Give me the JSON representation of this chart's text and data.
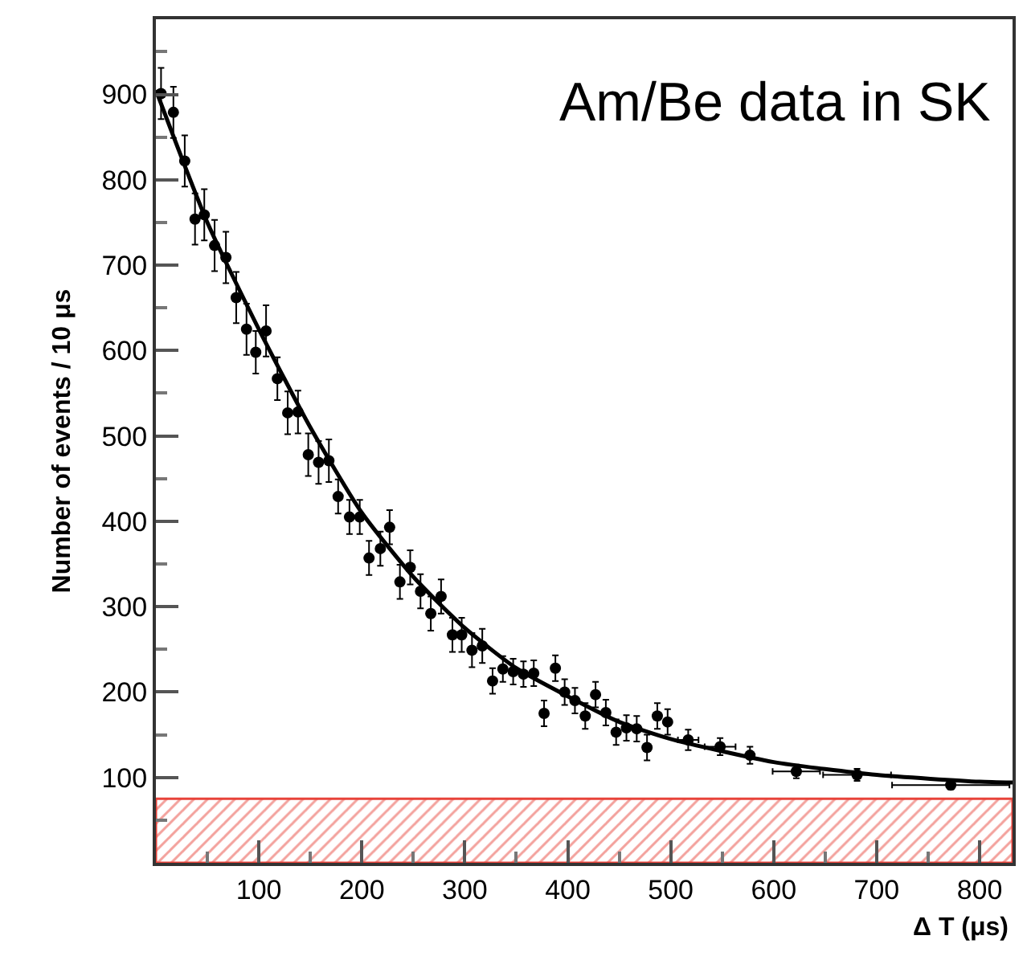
{
  "chart_data": {
    "type": "scatter",
    "xlabel": "Δ T (μs)",
    "ylabel": "Number of events / 10 μs",
    "annotations": [
      "Am/Be data in SK"
    ],
    "xlim": [
      0,
      832
    ],
    "ylim": [
      0,
      988
    ],
    "xticks": [
      100,
      200,
      300,
      400,
      500,
      600,
      700,
      800
    ],
    "yticks": [
      100,
      200,
      300,
      400,
      500,
      600,
      700,
      800,
      900
    ],
    "bands": [
      {
        "axis": "y",
        "from": 0,
        "to": 75,
        "color": "#e8433a"
      }
    ],
    "series": [
      {
        "color": "#000000",
        "marker": "circle",
        "x": [
          5,
          17,
          28,
          38,
          47,
          57,
          68,
          78,
          88,
          97,
          107,
          118,
          128,
          138,
          148,
          158,
          168,
          177,
          188,
          198,
          207,
          218,
          227,
          237,
          247,
          257,
          267,
          277,
          288,
          297,
          307,
          317,
          327,
          337,
          347,
          357,
          367,
          377,
          388,
          397,
          407,
          417,
          427,
          437,
          447,
          457,
          467,
          477,
          487,
          497,
          517,
          548,
          577,
          622,
          681,
          772
        ],
        "values": [
          901,
          879,
          822,
          754,
          759,
          723,
          709,
          662,
          625,
          598,
          623,
          567,
          527,
          528,
          478,
          469,
          471,
          429,
          405,
          405,
          357,
          368,
          393,
          329,
          346,
          318,
          292,
          312,
          267,
          267,
          249,
          254,
          213,
          227,
          224,
          221,
          222,
          175,
          228,
          200,
          190,
          172,
          197,
          176,
          153,
          158,
          157,
          135,
          172,
          165,
          144,
          136,
          126,
          107,
          103,
          91
        ],
        "errors": [
          30,
          30,
          30,
          30,
          30,
          30,
          30,
          30,
          30,
          25,
          30,
          25,
          25,
          25,
          25,
          25,
          25,
          20,
          20,
          20,
          20,
          20,
          20,
          20,
          20,
          20,
          20,
          20,
          20,
          20,
          20,
          20,
          15,
          15,
          15,
          15,
          15,
          15,
          15,
          15,
          15,
          15,
          15,
          15,
          15,
          15,
          15,
          15,
          15,
          15,
          12,
          10,
          10,
          8,
          7,
          5
        ],
        "xerrors": [
          null,
          null,
          null,
          null,
          null,
          null,
          null,
          null,
          null,
          null,
          null,
          null,
          null,
          null,
          null,
          null,
          null,
          null,
          null,
          null,
          null,
          null,
          null,
          null,
          null,
          null,
          null,
          null,
          null,
          null,
          null,
          null,
          null,
          null,
          null,
          null,
          null,
          null,
          null,
          null,
          null,
          null,
          null,
          null,
          null,
          null,
          null,
          null,
          null,
          null,
          10,
          15,
          null,
          23,
          33,
          57
        ]
      },
      {
        "type": "line",
        "color": "#000000",
        "line_style": "solid",
        "x": [
          0,
          50,
          100,
          150,
          200,
          250,
          300,
          350,
          400,
          450,
          500,
          600,
          700,
          800,
          832
        ],
        "values": [
          905,
          750,
          625,
          510,
          410,
          335,
          275,
          228,
          195,
          165,
          145,
          118,
          103,
          95,
          94
        ]
      }
    ]
  }
}
